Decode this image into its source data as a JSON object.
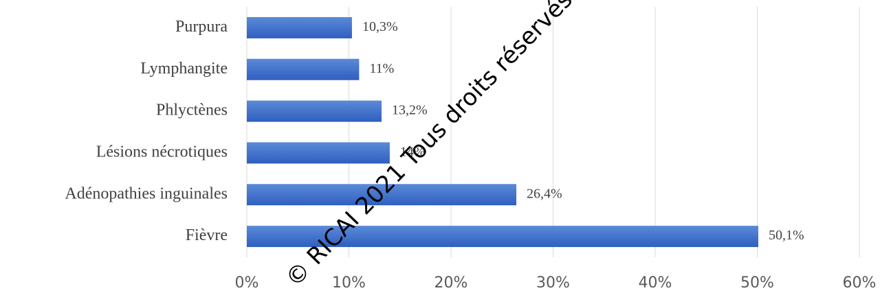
{
  "chart_data": {
    "type": "bar",
    "orientation": "horizontal",
    "categories": [
      "Purpura",
      "Lymphangite",
      "Phlyctènes",
      "Lésions nécrotiques",
      "Adénopathies inguinales",
      "Fièvre"
    ],
    "values": [
      10.3,
      11,
      13.2,
      14,
      26.4,
      50.1
    ],
    "value_labels": [
      "10,3%",
      "11%",
      "13,2%",
      "14%",
      "26,4%",
      "50,1%"
    ],
    "color": "#4472c4",
    "xlim": [
      0,
      60
    ],
    "xticks": [
      {
        "value": 0,
        "label": "0%"
      },
      {
        "value": 10,
        "label": "10%"
      },
      {
        "value": 20,
        "label": "20%"
      },
      {
        "value": 30,
        "label": "30%"
      },
      {
        "value": 40,
        "label": "40%"
      },
      {
        "value": 50,
        "label": "50%"
      },
      {
        "value": 60,
        "label": "60%"
      }
    ],
    "grid": true,
    "watermark": "© RICAI 2021 Tous droits réservés."
  }
}
